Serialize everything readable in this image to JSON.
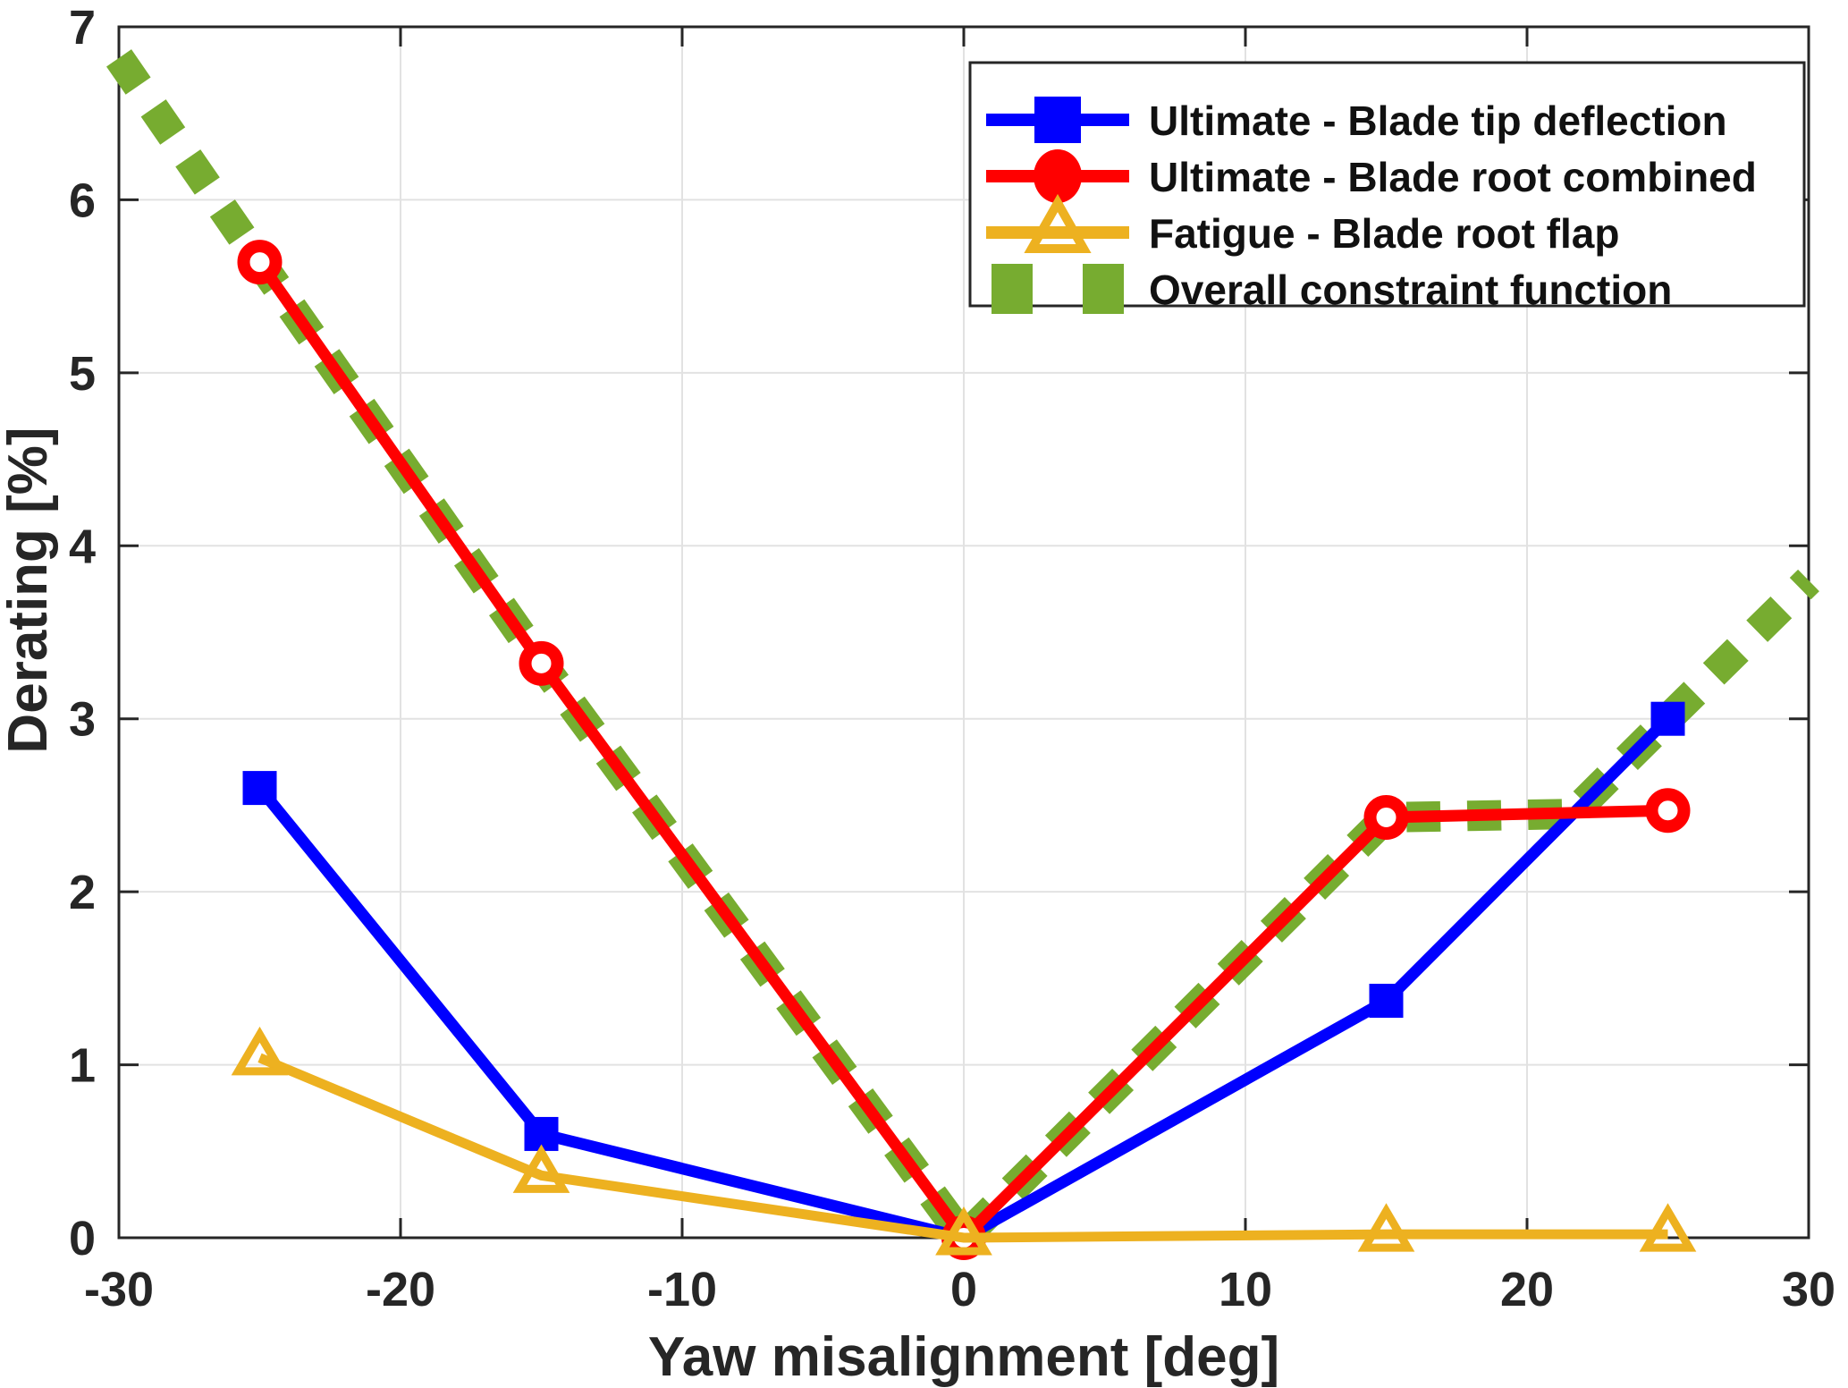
{
  "chart_data": {
    "type": "line",
    "title": "",
    "xlabel": "Yaw misalignment [deg]",
    "ylabel": "Derating [%]",
    "xlim": [
      -30,
      30
    ],
    "ylim": [
      0,
      7
    ],
    "xticks": [
      -30,
      -20,
      -10,
      0,
      10,
      20,
      30
    ],
    "yticks": [
      0,
      1,
      2,
      3,
      4,
      5,
      6,
      7
    ],
    "grid": true,
    "legend_position": "top-right",
    "colors": {
      "blue": "#0000ff",
      "red": "#ff0000",
      "gold": "#edb120",
      "green": "#77ac30",
      "axis": "#262626",
      "grid": "#e2e2e2",
      "legend_border": "#262626",
      "background": "#ffffff"
    },
    "series": [
      {
        "name": "Ultimate - Blade tip deflection",
        "color": "#0000ff",
        "marker": "square",
        "marker_fill": "solid",
        "line_style": "solid",
        "line_width": 13,
        "z": 2,
        "x": [
          -25,
          -15,
          0,
          15,
          25
        ],
        "y": [
          2.6,
          0.6,
          0.0,
          1.37,
          3.0
        ]
      },
      {
        "name": "Ultimate - Blade root combined",
        "color": "#ff0000",
        "marker": "circle",
        "marker_fill": "open",
        "line_style": "solid",
        "line_width": 13,
        "z": 3,
        "x": [
          -25,
          -15,
          0,
          15,
          25
        ],
        "y": [
          5.64,
          3.32,
          0.0,
          2.43,
          2.47
        ]
      },
      {
        "name": "Fatigue - Blade root flap",
        "color": "#edb120",
        "marker": "triangle",
        "marker_fill": "open",
        "line_style": "solid",
        "line_width": 11,
        "z": 4,
        "x": [
          -25,
          -15,
          0,
          15,
          25
        ],
        "y": [
          1.04,
          0.36,
          0.0,
          0.02,
          0.02
        ]
      },
      {
        "name": "Overall constraint function",
        "color": "#77ac30",
        "marker": "none",
        "marker_fill": "none",
        "line_style": "dashed",
        "line_width": 34,
        "z": 1,
        "x": [
          -30,
          -25,
          -15,
          0,
          15,
          21.6,
          25,
          30
        ],
        "y": [
          6.82,
          5.64,
          3.32,
          0.0,
          2.43,
          2.45,
          3.0,
          3.8
        ]
      }
    ]
  }
}
